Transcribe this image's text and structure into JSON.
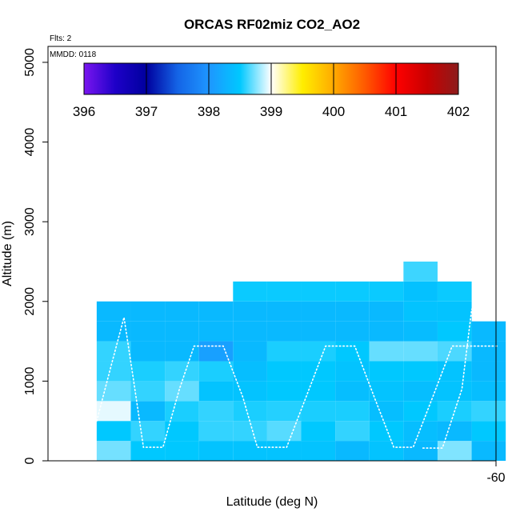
{
  "chart_data": {
    "type": "heatmap",
    "title": "ORCAS RF02miz CO2_AO2",
    "xlabel": "Latitude (deg N)",
    "ylabel": "Altitude (m)",
    "annotations": {
      "flights": "Flts: 2",
      "mmdd": "MMDD: 0118"
    },
    "xlim": [
      -64.6,
      -60
    ],
    "ylim": [
      0,
      5200
    ],
    "x_ticks": [
      -60
    ],
    "x_tick_labels": [
      "-60"
    ],
    "y_ticks": [
      0,
      1000,
      2000,
      3000,
      4000,
      5000
    ],
    "y_tick_labels": [
      "0",
      "1000",
      "2000",
      "3000",
      "4000",
      "5000"
    ],
    "colorbar": {
      "range": [
        396,
        402
      ],
      "ticks": [
        396,
        397,
        398,
        399,
        400,
        401,
        402
      ],
      "tick_labels": [
        "396",
        "397",
        "398",
        "399",
        "400",
        "401",
        "402"
      ],
      "stops": [
        [
          396,
          "#7a16f0"
        ],
        [
          396.5,
          "#1e00c8"
        ],
        [
          397,
          "#00009e"
        ],
        [
          397.5,
          "#1464e6"
        ],
        [
          398,
          "#1e96ff"
        ],
        [
          398.5,
          "#00c8ff"
        ],
        [
          399,
          "#ffffff"
        ],
        [
          399.5,
          "#ffee00"
        ],
        [
          400,
          "#ffaa00"
        ],
        [
          400.5,
          "#ff5a00"
        ],
        [
          401,
          "#ff0000"
        ],
        [
          401.5,
          "#c80000"
        ],
        [
          402,
          "#8c1c1c"
        ]
      ]
    },
    "grid": {
      "x_bin_deg": 0.35,
      "y_bin_m": 250,
      "x_start": -64.1,
      "y_start": 0
    },
    "grid_columns": [
      {
        "x": -63.925,
        "values": [
          398.73,
          398.5,
          398.95,
          398.7,
          398.6,
          398.6,
          398.35,
          398.35
        ]
      },
      {
        "x": -63.575,
        "values": [
          398.5,
          398.6,
          398.35,
          398.6,
          398.55,
          398.35,
          398.35,
          398.35
        ]
      },
      {
        "x": -63.225,
        "values": [
          398.5,
          398.5,
          398.55,
          398.7,
          398.6,
          398.35,
          398.35,
          398.35
        ]
      },
      {
        "x": -62.875,
        "values": [
          398.45,
          398.6,
          398.6,
          398.45,
          398.55,
          398.1,
          398.35,
          398.35
        ]
      },
      {
        "x": -62.525,
        "values": [
          398.45,
          398.6,
          398.55,
          398.45,
          398.4,
          398.35,
          398.35,
          398.35,
          398.52
        ]
      },
      {
        "x": -62.175,
        "values": [
          398.45,
          398.67,
          398.57,
          398.5,
          398.5,
          398.55,
          398.35,
          398.35,
          398.52
        ]
      },
      {
        "x": -61.825,
        "values": [
          398.45,
          398.5,
          398.55,
          398.5,
          398.5,
          398.55,
          398.35,
          398.35,
          398.52
        ]
      },
      {
        "x": -61.475,
        "values": [
          398.35,
          398.6,
          398.55,
          398.4,
          398.45,
          398.5,
          398.35,
          398.35,
          398.52
        ]
      },
      {
        "x": -61.125,
        "values": [
          398.45,
          398.5,
          398.4,
          398.45,
          398.5,
          398.7,
          398.35,
          398.35,
          398.52
        ]
      },
      {
        "x": -60.775,
        "values": [
          398.35,
          398.4,
          398.5,
          398.4,
          398.5,
          398.7,
          398.38,
          398.45,
          398.43,
          398.62
        ]
      },
      {
        "x": -60.425,
        "values": [
          398.75,
          398.35,
          398.55,
          398.45,
          398.45,
          398.65,
          398.5,
          398.45,
          398.52
        ]
      },
      {
        "x": -60.075,
        "values": [
          398.35,
          398.5,
          398.6,
          398.4,
          398.35,
          398.35,
          398.35
        ]
      }
    ],
    "flight_track": [
      [
        -64.1,
        500
      ],
      [
        -63.95,
        1200
      ],
      [
        -63.82,
        1800
      ],
      [
        -63.72,
        1000
      ],
      [
        -63.62,
        170
      ],
      [
        -63.42,
        170
      ],
      [
        -63.25,
        900
      ],
      [
        -63.1,
        1440
      ],
      [
        -62.8,
        1440
      ],
      [
        -62.6,
        800
      ],
      [
        -62.45,
        170
      ],
      [
        -62.15,
        170
      ],
      [
        -61.95,
        800
      ],
      [
        -61.75,
        1440
      ],
      [
        -61.45,
        1440
      ],
      [
        -61.25,
        800
      ],
      [
        -61.05,
        170
      ],
      [
        -60.85,
        170
      ],
      [
        -60.65,
        800
      ],
      [
        -60.45,
        1440
      ],
      [
        -60.15,
        1440
      ],
      [
        -59.98,
        1440
      ]
    ],
    "flight_track_2": [
      [
        -60.75,
        160
      ],
      [
        -60.55,
        160
      ],
      [
        -60.35,
        900
      ],
      [
        -60.25,
        1900
      ],
      [
        -60.05,
        2200
      ]
    ]
  }
}
